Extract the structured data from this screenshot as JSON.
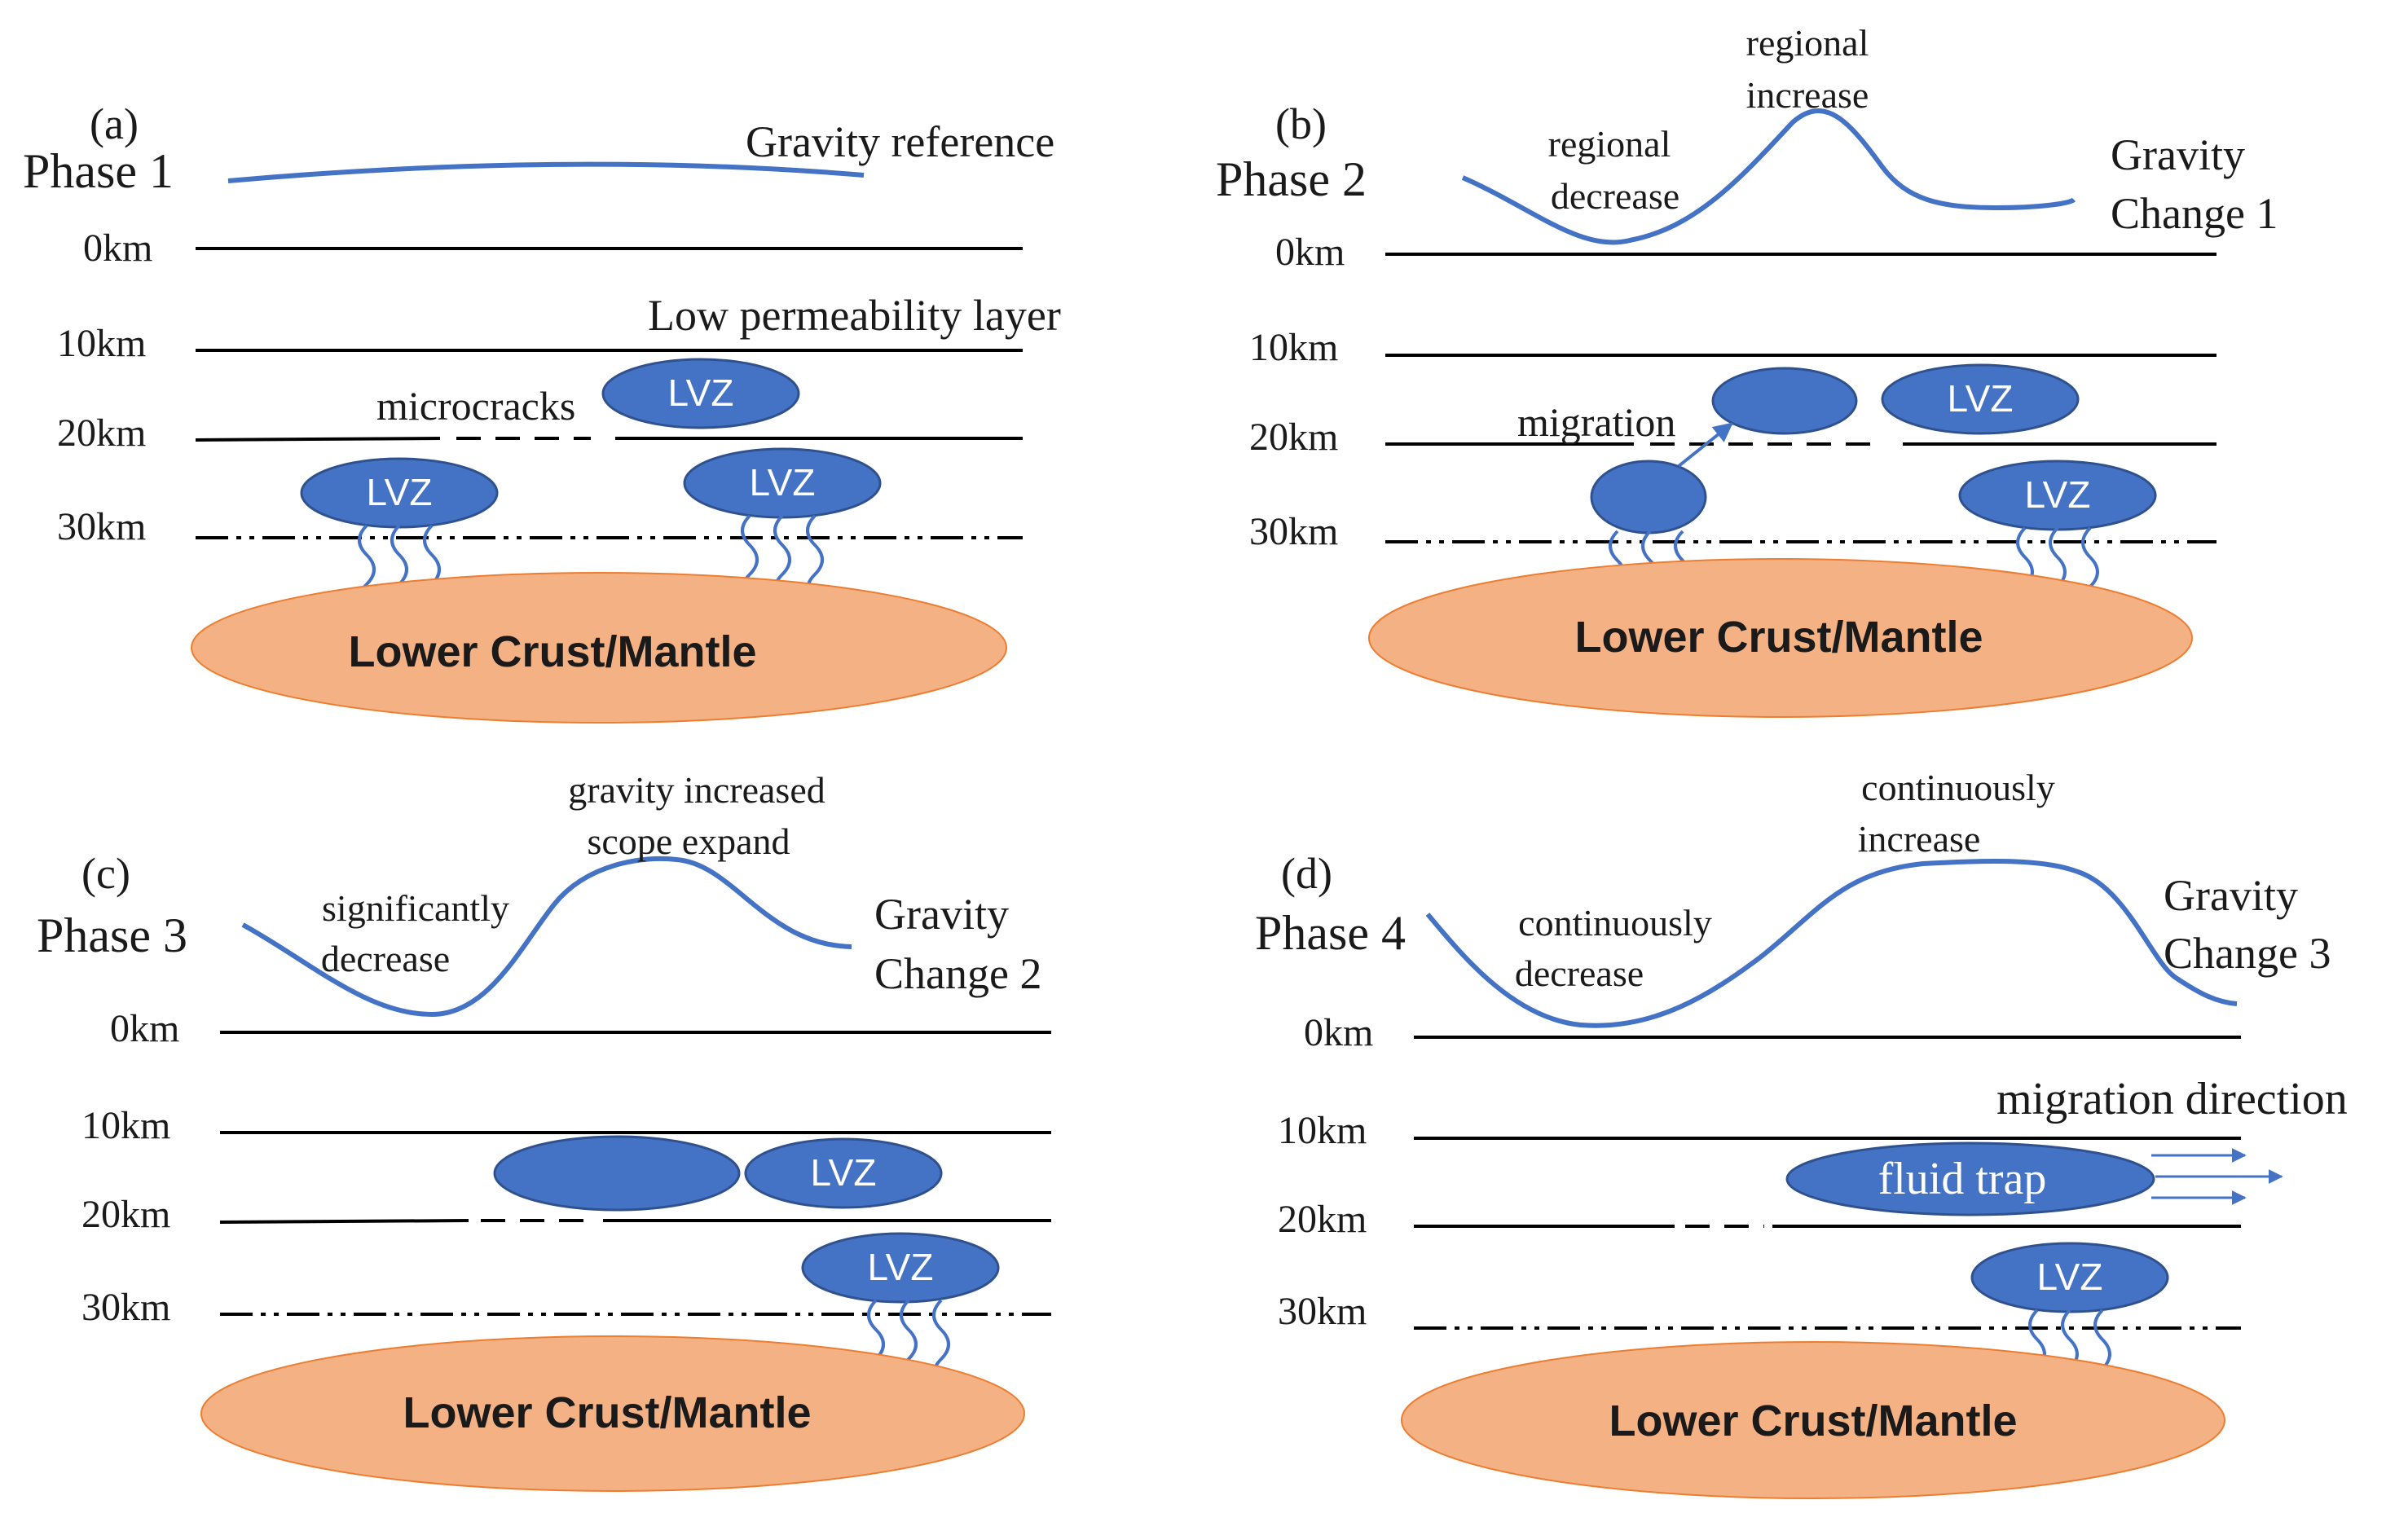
{
  "colors": {
    "curve": "#4472c4",
    "lvz_fill": "#4472c4",
    "lvz_stroke": "#2f528f",
    "mantle_fill": "#f4b183",
    "mantle_stroke": "#ed7d31",
    "line": "#000000"
  },
  "depth_labels": [
    "0km",
    "10km",
    "20km",
    "30km"
  ],
  "lvz_label": "LVZ",
  "mantle_label": "Lower Crust/Mantle",
  "panels": {
    "a": {
      "letter": "(a)",
      "phase": "Phase 1",
      "curve_label": "Gravity reference",
      "layer_label": "Low permeability layer",
      "microcracks_label": "microcracks"
    },
    "b": {
      "letter": "(b)",
      "phase": "Phase 2",
      "curve_label_1": "Gravity",
      "curve_label_2": "Change 1",
      "decrease_1": "regional",
      "decrease_2": "decrease",
      "increase_1": "regional",
      "increase_2": "increase",
      "migration_label": "migration"
    },
    "c": {
      "letter": "(c)",
      "phase": "Phase 3",
      "curve_label_1": "Gravity",
      "curve_label_2": "Change 2",
      "decrease_1": "significantly",
      "decrease_2": "decrease",
      "increase_1": "gravity increased",
      "increase_2": "scope expand"
    },
    "d": {
      "letter": "(d)",
      "phase": "Phase 4",
      "curve_label_1": "Gravity",
      "curve_label_2": "Change 3",
      "decrease_1": "continuously",
      "decrease_2": "decrease",
      "increase_1": "continuously",
      "increase_2": "increase",
      "direction_label": "migration direction",
      "trap_label": "fluid trap"
    }
  }
}
